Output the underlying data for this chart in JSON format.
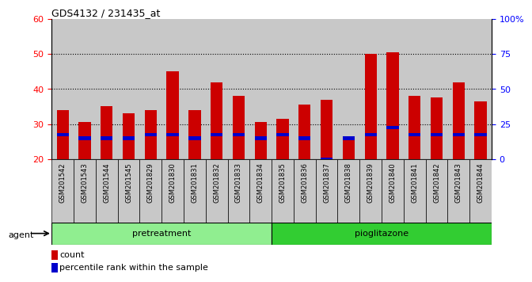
{
  "title": "GDS4132 / 231435_at",
  "samples": [
    "GSM201542",
    "GSM201543",
    "GSM201544",
    "GSM201545",
    "GSM201829",
    "GSM201830",
    "GSM201831",
    "GSM201832",
    "GSM201833",
    "GSM201834",
    "GSM201835",
    "GSM201836",
    "GSM201837",
    "GSM201838",
    "GSM201839",
    "GSM201840",
    "GSM201841",
    "GSM201842",
    "GSM201843",
    "GSM201844"
  ],
  "counts": [
    34.0,
    30.5,
    35.0,
    33.0,
    34.0,
    45.0,
    34.0,
    42.0,
    38.0,
    30.5,
    31.5,
    35.5,
    37.0,
    26.0,
    50.0,
    50.5,
    38.0,
    37.5,
    42.0,
    36.5
  ],
  "percentiles": [
    27,
    26,
    26,
    26,
    27,
    27,
    26,
    27,
    27,
    26,
    27,
    26,
    20,
    26,
    27,
    29,
    27,
    27,
    27,
    27
  ],
  "pretreatment_count": 10,
  "pioglitazone_count": 10,
  "group_labels": [
    "pretreatment",
    "pioglitazone"
  ],
  "pretreatment_color": "#90ee90",
  "pioglitazone_color": "#32cd32",
  "bar_color_red": "#cc0000",
  "bar_color_blue": "#0000cc",
  "ylim_left": [
    20,
    60
  ],
  "ylim_right": [
    0,
    100
  ],
  "yticks_left": [
    20,
    30,
    40,
    50,
    60
  ],
  "yticks_right": [
    0,
    25,
    50,
    75,
    100
  ],
  "yticklabels_right": [
    "0",
    "25",
    "50",
    "75",
    "100%"
  ],
  "bg_color": "#c8c8c8",
  "legend_count_label": "count",
  "legend_pct_label": "percentile rank within the sample",
  "agent_label": "agent"
}
